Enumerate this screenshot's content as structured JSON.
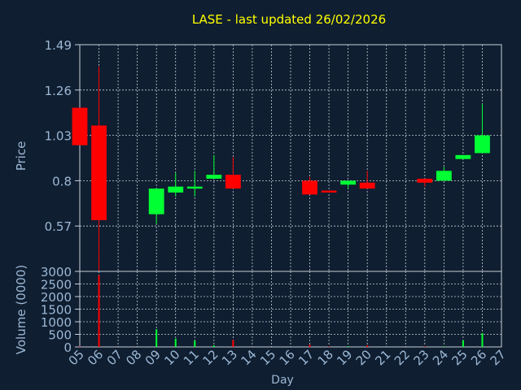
{
  "title": "LASE - last updated 26/02/2026",
  "colors": {
    "background": "#0f1e30",
    "title": "#ffff00",
    "axis_text": "#9cb8d6",
    "grid": "#c8d0d8",
    "up": "#00ff33",
    "down": "#ff0000"
  },
  "chart_data": [
    {
      "type": "candlestick",
      "ylabel": "Price",
      "ylim": [
        0.34,
        1.49
      ],
      "yticks": [
        "0.57",
        "0.8",
        "1.03",
        "1.26",
        "1.49"
      ],
      "grid": true,
      "x": [
        "05",
        "06",
        "07",
        "08",
        "09",
        "10",
        "11",
        "12",
        "13",
        "14",
        "15",
        "16",
        "17",
        "18",
        "19",
        "20",
        "21",
        "22",
        "23",
        "24",
        "25",
        "26",
        "27"
      ],
      "candles": [
        {
          "day": "05",
          "open": 1.17,
          "high": 1.17,
          "low": 0.98,
          "close": 0.98
        },
        {
          "day": "06",
          "open": 1.08,
          "high": 1.38,
          "low": 0.34,
          "close": 0.6
        },
        {
          "day": "09",
          "open": 0.63,
          "high": 0.76,
          "low": 0.58,
          "close": 0.76
        },
        {
          "day": "10",
          "open": 0.74,
          "high": 0.84,
          "low": 0.72,
          "close": 0.77
        },
        {
          "day": "11",
          "open": 0.76,
          "high": 0.85,
          "low": 0.72,
          "close": 0.77
        },
        {
          "day": "12",
          "open": 0.81,
          "high": 0.93,
          "low": 0.81,
          "close": 0.83
        },
        {
          "day": "13",
          "open": 0.83,
          "high": 0.92,
          "low": 0.76,
          "close": 0.76
        },
        {
          "day": "17",
          "open": 0.8,
          "high": 0.82,
          "low": 0.73,
          "close": 0.73
        },
        {
          "day": "18",
          "open": 0.75,
          "high": 0.75,
          "low": 0.74,
          "close": 0.74
        },
        {
          "day": "19",
          "open": 0.78,
          "high": 0.8,
          "low": 0.76,
          "close": 0.8
        },
        {
          "day": "20",
          "open": 0.79,
          "high": 0.85,
          "low": 0.76,
          "close": 0.76
        },
        {
          "day": "23",
          "open": 0.81,
          "high": 0.81,
          "low": 0.77,
          "close": 0.79
        },
        {
          "day": "24",
          "open": 0.8,
          "high": 0.87,
          "low": 0.8,
          "close": 0.85
        },
        {
          "day": "25",
          "open": 0.91,
          "high": 0.93,
          "low": 0.91,
          "close": 0.93
        },
        {
          "day": "26",
          "open": 0.94,
          "high": 1.19,
          "low": 0.94,
          "close": 1.03
        }
      ]
    },
    {
      "type": "bar",
      "ylabel": "Volume (0000)",
      "xlabel": "Day",
      "ylim": [
        0,
        3000
      ],
      "yticks": [
        "0",
        "500",
        "1000",
        "1500",
        "2000",
        "2500",
        "3000"
      ],
      "grid": true,
      "categories": [
        "05",
        "06",
        "09",
        "10",
        "11",
        "12",
        "13",
        "17",
        "18",
        "19",
        "20",
        "23",
        "24",
        "25",
        "26"
      ],
      "values": [
        20,
        2850,
        700,
        330,
        250,
        60,
        280,
        90,
        20,
        30,
        60,
        20,
        20,
        260,
        550
      ]
    }
  ]
}
